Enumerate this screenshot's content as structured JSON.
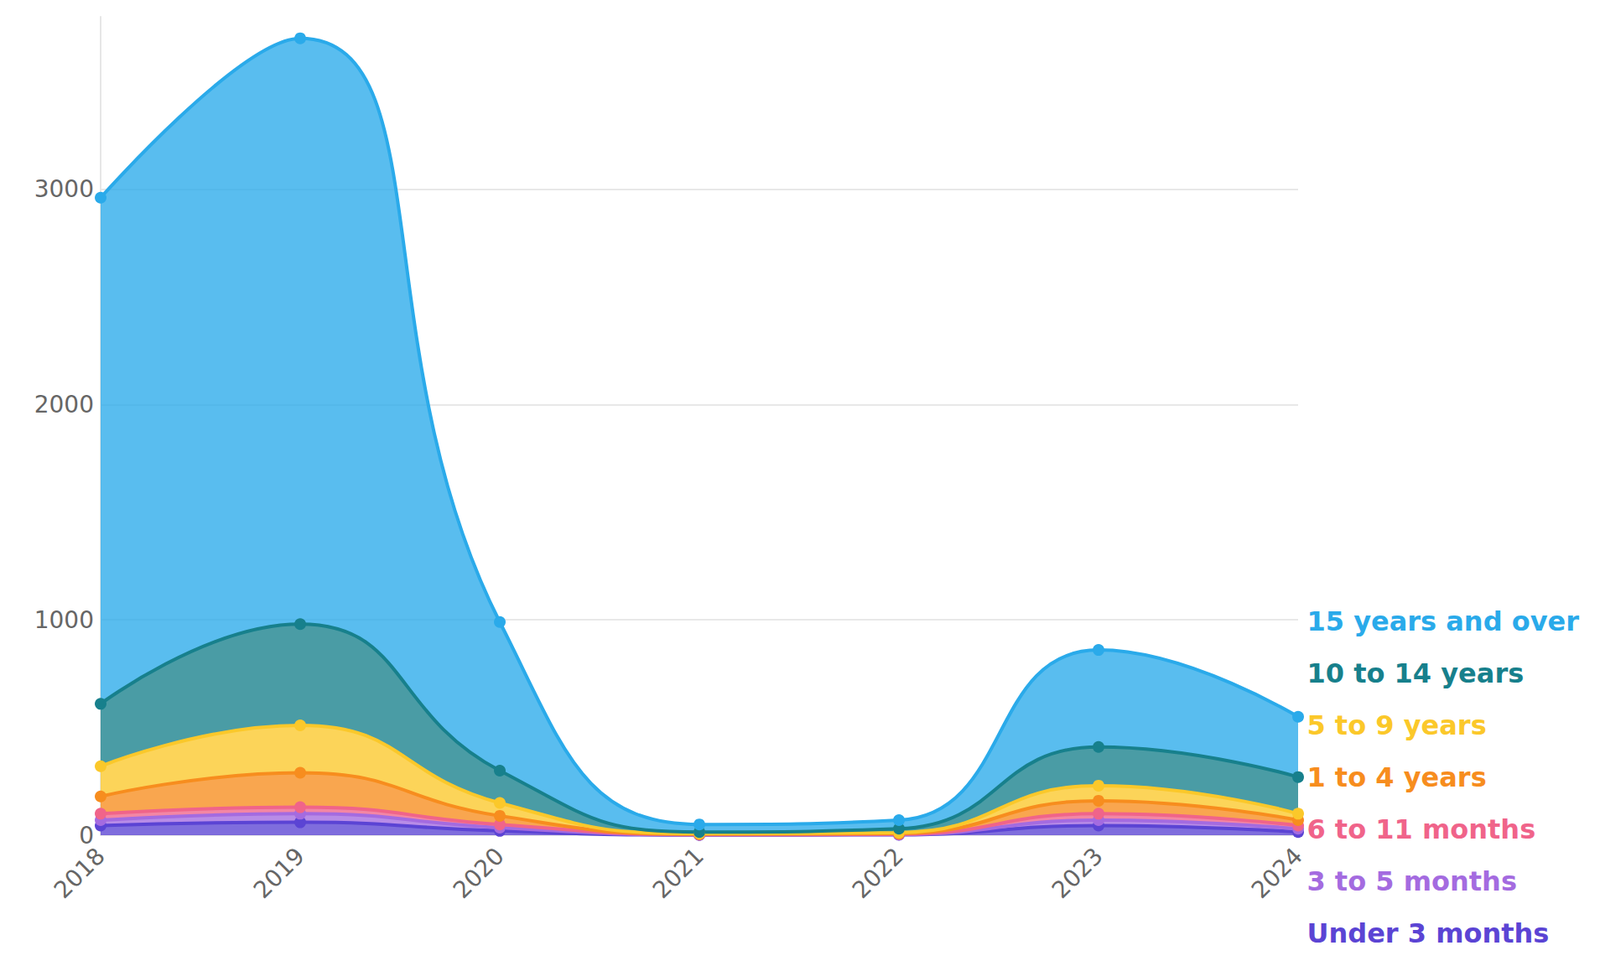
{
  "chart_data": {
    "type": "area",
    "stacked": true,
    "grid": true,
    "legend": "right",
    "marker": "circle",
    "line_style": "smooth",
    "categories": [
      "2018",
      "2019",
      "2020",
      "2021",
      "2022",
      "2023",
      "2024"
    ],
    "ylim": [
      0,
      3800
    ],
    "yticks": [
      0,
      1000,
      2000,
      3000
    ],
    "series": [
      {
        "name": "Under 3 months",
        "color": "#5b44d4",
        "values": [
          45,
          60,
          20,
          1,
          2,
          45,
          15
        ]
      },
      {
        "name": "3 to 5 months",
        "color": "#a46be0",
        "values": [
          25,
          40,
          15,
          1,
          1,
          25,
          15
        ]
      },
      {
        "name": "6 to 11 months",
        "color": "#f0648a",
        "values": [
          30,
          30,
          15,
          1,
          2,
          30,
          15
        ]
      },
      {
        "name": "1 to 4 years",
        "color": "#f78d1e",
        "values": [
          80,
          160,
          40,
          2,
          3,
          60,
          25
        ]
      },
      {
        "name": "5 to 9 years",
        "color": "#fbc82a",
        "values": [
          140,
          220,
          60,
          3,
          4,
          70,
          30
        ]
      },
      {
        "name": "10 to 14 years",
        "color": "#17808c",
        "values": [
          290,
          470,
          150,
          7,
          18,
          180,
          170
        ]
      },
      {
        "name": "15 years and over",
        "color": "#2aaaea",
        "values": [
          2350,
          2720,
          690,
          35,
          40,
          450,
          280
        ]
      }
    ]
  }
}
